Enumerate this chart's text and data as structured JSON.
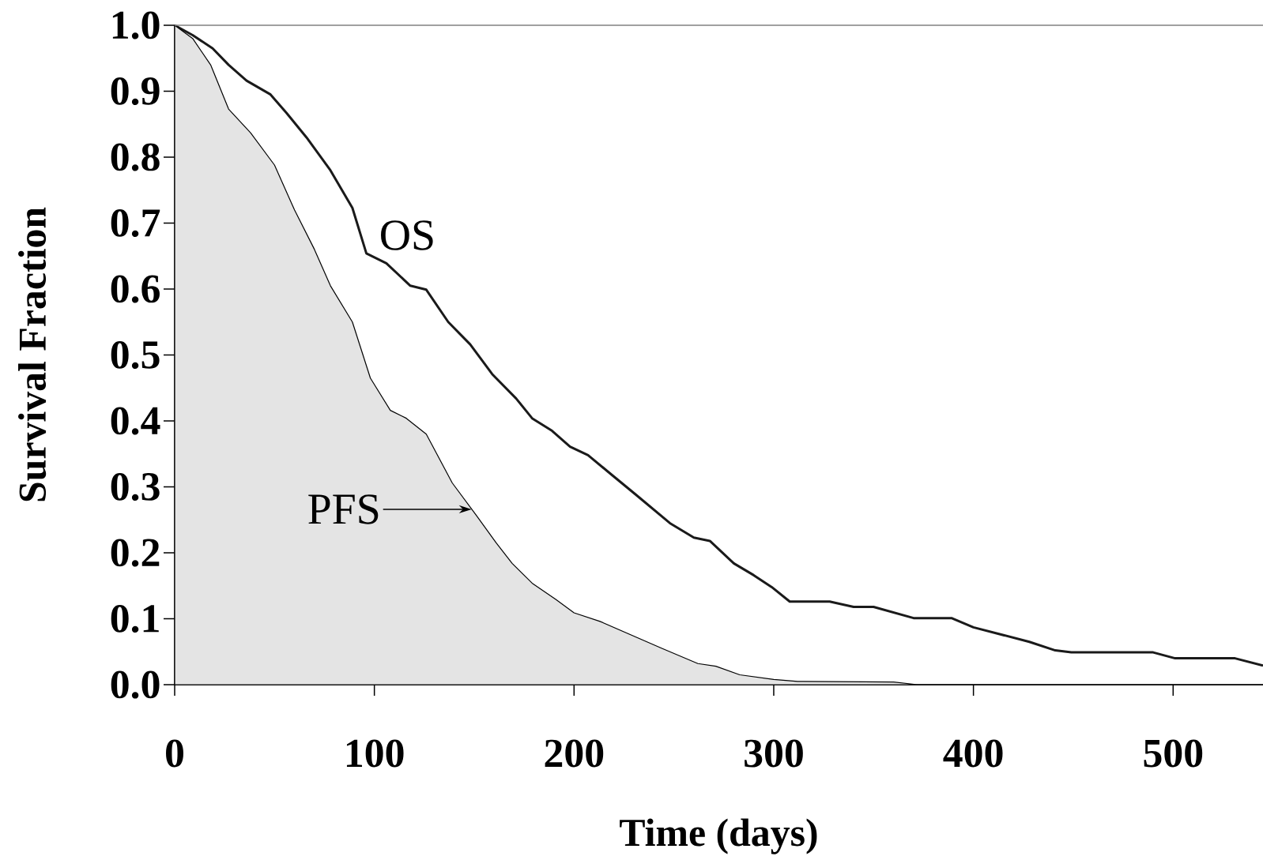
{
  "chart_data": {
    "type": "line",
    "xlabel": "Time (days)",
    "ylabel": "Survival Fraction",
    "series": [
      {
        "name": "OS",
        "color": "#1a1a1a",
        "x": [
          0,
          9,
          19,
          27,
          36,
          48,
          56,
          66,
          78,
          89,
          96,
          106,
          118,
          126,
          137,
          148,
          159,
          171,
          179,
          189,
          198,
          207,
          219,
          231,
          248,
          260,
          268,
          280,
          290,
          299,
          308,
          328,
          340,
          350,
          370,
          389,
          400,
          428,
          441,
          449,
          490,
          501,
          531,
          545
        ],
        "values": [
          1.0,
          0.985,
          0.965,
          0.94,
          0.916,
          0.895,
          0.867,
          0.83,
          0.78,
          0.723,
          0.654,
          0.639,
          0.605,
          0.599,
          0.55,
          0.516,
          0.471,
          0.434,
          0.404,
          0.385,
          0.361,
          0.348,
          0.318,
          0.288,
          0.245,
          0.223,
          0.218,
          0.184,
          0.166,
          0.148,
          0.126,
          0.126,
          0.118,
          0.118,
          0.101,
          0.101,
          0.087,
          0.065,
          0.052,
          0.049,
          0.049,
          0.04,
          0.04,
          0.029
        ]
      },
      {
        "type": "area",
        "color": "#e4e4e4",
        "x": [
          0,
          9,
          18,
          27,
          38,
          50,
          60,
          70,
          78,
          89,
          98,
          108,
          116,
          126,
          139,
          151,
          161,
          169,
          179,
          191,
          200,
          213,
          244,
          262,
          271,
          283,
          300,
          312,
          360,
          372,
          545
        ],
        "values": [
          1.0,
          0.98,
          0.94,
          0.873,
          0.837,
          0.788,
          0.72,
          0.66,
          0.605,
          0.55,
          0.465,
          0.416,
          0.404,
          0.38,
          0.306,
          0.257,
          0.215,
          0.184,
          0.154,
          0.129,
          0.109,
          0.096,
          0.055,
          0.032,
          0.028,
          0.015,
          0.008,
          0.005,
          0.004,
          0.0,
          0.0
        ]
      }
    ],
    "annotations": [
      {
        "text": "PFS",
        "x": 149,
        "y": 0.266
      }
    ],
    "xlim": [
      0,
      545
    ],
    "ylim": [
      0,
      1.0
    ],
    "xticks": [
      0,
      100,
      200,
      300,
      400,
      500
    ],
    "yticks": [
      {
        "value": 0,
        "label": "0.0"
      },
      {
        "value": 0.1,
        "label": "0.1"
      },
      {
        "value": 0.2,
        "label": "0.2"
      },
      {
        "value": 0.3,
        "label": "0.3"
      },
      {
        "value": 0.4,
        "label": "0.4"
      },
      {
        "value": 0.5,
        "label": "0.5"
      },
      {
        "value": 0.6,
        "label": "0.6"
      },
      {
        "value": 0.7,
        "label": "0.7"
      },
      {
        "value": 0.8,
        "label": "0.8"
      },
      {
        "value": 0.9,
        "label": "0.9"
      },
      {
        "value": 1.0,
        "label": "1.0"
      }
    ],
    "grid": false
  }
}
